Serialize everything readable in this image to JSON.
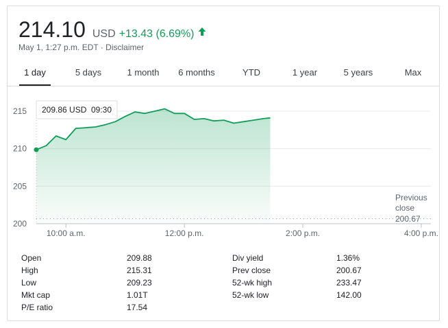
{
  "quote": {
    "price": "214.10",
    "currency": "USD",
    "change": "+13.43 (6.69%)",
    "timestamp": "May 1, 1:27 p.m. EDT",
    "separator": " · ",
    "disclaimer": "Disclaimer",
    "change_color": "#0f9d58"
  },
  "tabs": [
    "1 day",
    "5 days",
    "1 month",
    "6 months",
    "YTD",
    "1 year",
    "5 years",
    "Max"
  ],
  "active_tab": "1 day",
  "chart_data": {
    "type": "area",
    "x_unit": "time of day",
    "x": [
      "09:30",
      "09:40",
      "09:50",
      "10:00",
      "10:10",
      "10:20",
      "10:30",
      "10:40",
      "10:50",
      "11:00",
      "11:10",
      "11:20",
      "11:30",
      "11:40",
      "11:50",
      "12:00",
      "12:10",
      "12:20",
      "12:30",
      "12:40",
      "12:50",
      "13:00",
      "13:10",
      "13:20",
      "13:27"
    ],
    "y": [
      209.86,
      210.4,
      211.7,
      211.2,
      212.7,
      212.8,
      212.9,
      213.2,
      213.6,
      214.3,
      214.9,
      214.7,
      215.0,
      215.31,
      214.7,
      214.7,
      213.9,
      214.0,
      213.7,
      213.8,
      213.4,
      213.6,
      213.8,
      214.0,
      214.1
    ],
    "ylim": [
      200,
      216
    ],
    "y_ticks": [
      "215",
      "210",
      "205",
      "200"
    ],
    "x_ticks": [
      "10:00 a.m.",
      "12:00 p.m.",
      "2:00 p.m.",
      "4:00 p.m."
    ],
    "previous_close": 200.67,
    "previous_close_label": "Previous close",
    "previous_close_value": "200.67",
    "tooltip_value": "209.86 USD",
    "tooltip_time": "09:30",
    "line_color": "#0f9d58",
    "fill_color": "#e6f4ea"
  },
  "stats": {
    "left": [
      {
        "label": "Open",
        "value": "209.88"
      },
      {
        "label": "High",
        "value": "215.31"
      },
      {
        "label": "Low",
        "value": "209.23"
      },
      {
        "label": "Mkt cap",
        "value": "1.01T"
      },
      {
        "label": "P/E ratio",
        "value": "17.54"
      }
    ],
    "right": [
      {
        "label": "Div yield",
        "value": "1.36%"
      },
      {
        "label": "Prev close",
        "value": "200.67"
      },
      {
        "label": "52-wk high",
        "value": "233.47"
      },
      {
        "label": "52-wk low",
        "value": "142.00"
      }
    ]
  }
}
